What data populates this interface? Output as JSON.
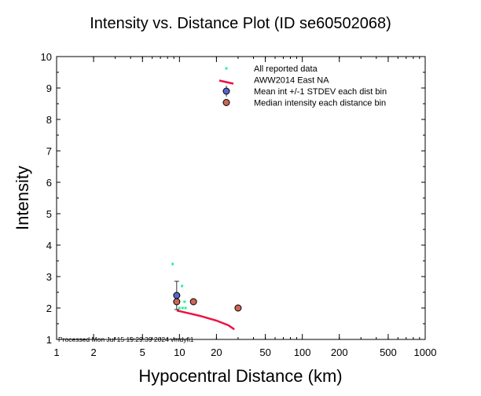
{
  "chart_data": {
    "type": "scatter",
    "title": "Intensity vs. Distance Plot (ID se60502068)",
    "xlabel": "Hypocentral Distance (km)",
    "ylabel": "Intensity",
    "x_scale": "log",
    "xlim": [
      1,
      1000
    ],
    "ylim": [
      1,
      10
    ],
    "x_ticks": [
      1,
      2,
      5,
      10,
      20,
      50,
      100,
      200,
      500,
      1000
    ],
    "x_tick_labels": [
      "1",
      "2",
      "5",
      "10",
      "20",
      "50",
      "100",
      "200",
      "500",
      "1000"
    ],
    "y_ticks": [
      1,
      2,
      3,
      4,
      5,
      6,
      7,
      8,
      9,
      10
    ],
    "y_tick_labels": [
      "1",
      "2",
      "3",
      "4",
      "5",
      "6",
      "7",
      "8",
      "9",
      "10"
    ],
    "grid": false,
    "legend_position": "top-right",
    "footer": "Processed Mon Jul 15 19:29:39 2024 vmdyfi1",
    "series": [
      {
        "name": "All reported data",
        "kind": "points",
        "color": "#33ee99",
        "points": [
          [
            8.8,
            3.4
          ],
          [
            9.6,
            2.4
          ],
          [
            10.5,
            2.7
          ],
          [
            9.7,
            2.2
          ],
          [
            11.0,
            2.2
          ],
          [
            10.0,
            2.0
          ],
          [
            10.6,
            2.0
          ],
          [
            11.2,
            2.0
          ],
          [
            30.5,
            2.0
          ]
        ]
      },
      {
        "name": "AWW2014 East NA",
        "kind": "line",
        "color": "#ee1144",
        "points": [
          [
            9.5,
            1.92
          ],
          [
            12,
            1.83
          ],
          [
            15,
            1.74
          ],
          [
            20,
            1.6
          ],
          [
            25,
            1.45
          ],
          [
            28,
            1.32
          ]
        ]
      },
      {
        "name": "Mean int +/-1 STDEV each dist bin",
        "kind": "errorbar",
        "color": "#5566cc",
        "points": [
          [
            9.5,
            2.4
          ]
        ],
        "stdev": [
          0.45
        ]
      },
      {
        "name": "Median intensity each distance bin",
        "kind": "points",
        "color": "#cc6655",
        "points": [
          [
            9.5,
            2.2
          ],
          [
            13.0,
            2.2
          ],
          [
            30.0,
            2.0
          ]
        ]
      }
    ]
  }
}
